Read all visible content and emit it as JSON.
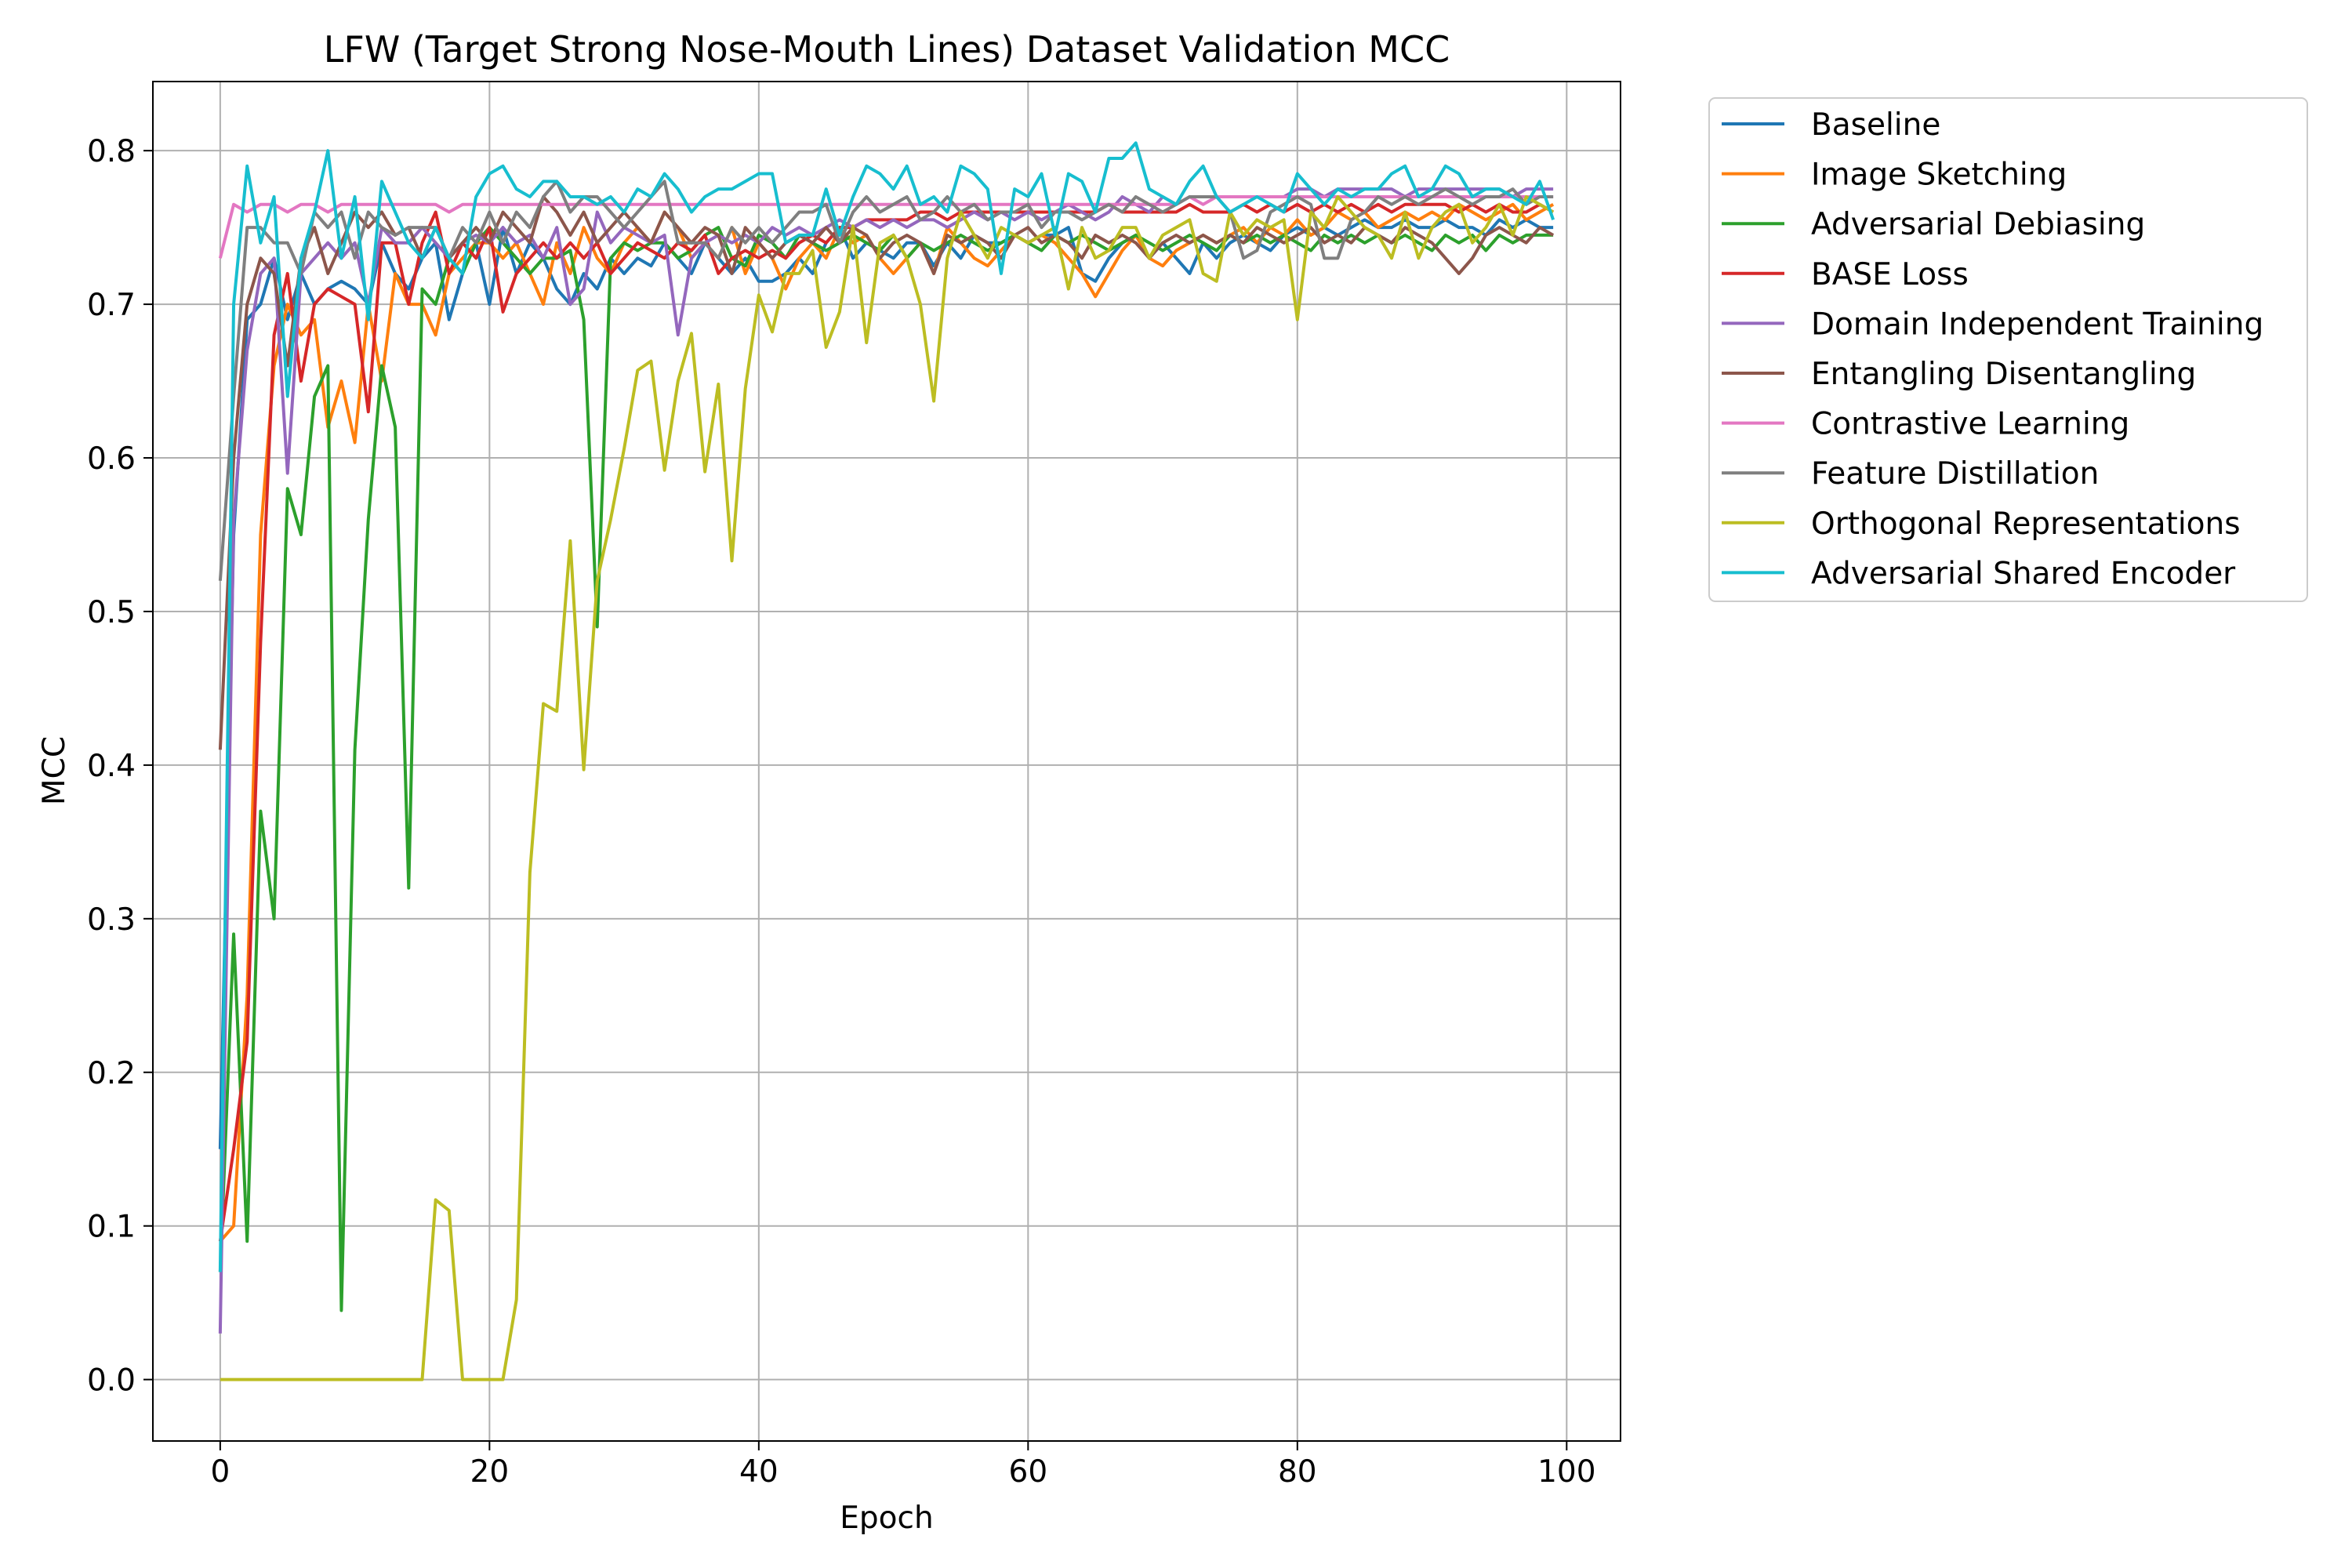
{
  "chart_data": {
    "type": "line",
    "title": "LFW (Target Strong Nose-Mouth Lines) Dataset Validation MCC",
    "xlabel": "Epoch",
    "ylabel": "MCC",
    "xlim": [
      -5,
      104
    ],
    "ylim": [
      -0.04,
      0.845
    ],
    "xticks": [
      0,
      20,
      40,
      60,
      80,
      100
    ],
    "yticks": [
      0.0,
      0.1,
      0.2,
      0.3,
      0.4,
      0.5,
      0.6,
      0.7,
      0.8
    ],
    "xtick_labels": [
      "0",
      "20",
      "40",
      "60",
      "80",
      "100"
    ],
    "ytick_labels": [
      "0.0",
      "0.1",
      "0.2",
      "0.3",
      "0.4",
      "0.5",
      "0.6",
      "0.7",
      "0.8"
    ],
    "grid": true,
    "legend_position": "outside-right-top",
    "x": [
      0,
      1,
      2,
      3,
      4,
      5,
      6,
      7,
      8,
      9,
      10,
      11,
      12,
      13,
      14,
      15,
      16,
      17,
      18,
      19,
      20,
      21,
      22,
      23,
      24,
      25,
      26,
      27,
      28,
      29,
      30,
      31,
      32,
      33,
      34,
      35,
      36,
      37,
      38,
      39,
      40,
      41,
      42,
      43,
      44,
      45,
      46,
      47,
      48,
      49,
      50,
      51,
      52,
      53,
      54,
      55,
      56,
      57,
      58,
      59,
      60,
      61,
      62,
      63,
      64,
      65,
      66,
      67,
      68,
      69,
      70,
      71,
      72,
      73,
      74,
      75,
      76,
      77,
      78,
      79,
      80,
      81,
      82,
      83,
      84,
      85,
      86,
      87,
      88,
      89,
      90,
      91,
      92,
      93,
      94,
      95,
      96,
      97,
      98,
      99
    ],
    "series": [
      {
        "name": "Baseline",
        "color": "#1f77b4",
        "values": [
          0.15,
          0.55,
          0.69,
          0.7,
          0.73,
          0.69,
          0.72,
          0.7,
          0.71,
          0.715,
          0.71,
          0.7,
          0.74,
          0.72,
          0.71,
          0.73,
          0.74,
          0.69,
          0.72,
          0.74,
          0.7,
          0.75,
          0.72,
          0.74,
          0.73,
          0.71,
          0.7,
          0.72,
          0.71,
          0.73,
          0.72,
          0.73,
          0.725,
          0.74,
          0.73,
          0.72,
          0.74,
          0.73,
          0.72,
          0.73,
          0.715,
          0.715,
          0.72,
          0.73,
          0.72,
          0.74,
          0.75,
          0.73,
          0.74,
          0.735,
          0.73,
          0.74,
          0.74,
          0.725,
          0.74,
          0.73,
          0.745,
          0.74,
          0.74,
          0.745,
          0.74,
          0.745,
          0.745,
          0.75,
          0.72,
          0.715,
          0.73,
          0.74,
          0.745,
          0.73,
          0.74,
          0.73,
          0.72,
          0.74,
          0.73,
          0.74,
          0.745,
          0.74,
          0.735,
          0.745,
          0.75,
          0.745,
          0.75,
          0.745,
          0.75,
          0.755,
          0.75,
          0.75,
          0.755,
          0.75,
          0.75,
          0.755,
          0.75,
          0.75,
          0.745,
          0.755,
          0.75,
          0.755,
          0.75,
          0.75
        ]
      },
      {
        "name": "Image Sketching",
        "color": "#ff7f0e",
        "values": [
          0.09,
          0.1,
          0.25,
          0.55,
          0.66,
          0.7,
          0.68,
          0.69,
          0.62,
          0.65,
          0.61,
          0.7,
          0.65,
          0.72,
          0.7,
          0.7,
          0.68,
          0.72,
          0.73,
          0.74,
          0.74,
          0.73,
          0.74,
          0.72,
          0.7,
          0.74,
          0.72,
          0.75,
          0.73,
          0.72,
          0.74,
          0.75,
          0.74,
          0.76,
          0.75,
          0.73,
          0.74,
          0.73,
          0.75,
          0.72,
          0.74,
          0.73,
          0.71,
          0.73,
          0.74,
          0.73,
          0.75,
          0.74,
          0.745,
          0.73,
          0.72,
          0.73,
          0.74,
          0.72,
          0.75,
          0.74,
          0.73,
          0.725,
          0.735,
          0.745,
          0.74,
          0.745,
          0.74,
          0.73,
          0.72,
          0.705,
          0.72,
          0.735,
          0.745,
          0.73,
          0.725,
          0.735,
          0.74,
          0.745,
          0.74,
          0.745,
          0.75,
          0.74,
          0.75,
          0.745,
          0.755,
          0.745,
          0.75,
          0.76,
          0.755,
          0.76,
          0.75,
          0.755,
          0.76,
          0.755,
          0.76,
          0.755,
          0.765,
          0.76,
          0.755,
          0.76,
          0.765,
          0.755,
          0.76,
          0.765
        ]
      },
      {
        "name": "Adversarial Debiasing",
        "color": "#2ca02c",
        "values": [
          0.07,
          0.29,
          0.09,
          0.37,
          0.3,
          0.58,
          0.55,
          0.64,
          0.66,
          0.045,
          0.41,
          0.56,
          0.66,
          0.62,
          0.32,
          0.71,
          0.7,
          0.73,
          0.72,
          0.74,
          0.75,
          0.74,
          0.73,
          0.72,
          0.73,
          0.73,
          0.735,
          0.69,
          0.49,
          0.73,
          0.74,
          0.735,
          0.74,
          0.74,
          0.73,
          0.735,
          0.745,
          0.75,
          0.73,
          0.725,
          0.745,
          0.74,
          0.73,
          0.745,
          0.74,
          0.735,
          0.74,
          0.745,
          0.74,
          0.735,
          0.745,
          0.73,
          0.74,
          0.735,
          0.74,
          0.745,
          0.74,
          0.735,
          0.74,
          0.745,
          0.74,
          0.735,
          0.745,
          0.74,
          0.745,
          0.74,
          0.735,
          0.74,
          0.745,
          0.74,
          0.735,
          0.74,
          0.745,
          0.74,
          0.735,
          0.745,
          0.74,
          0.745,
          0.74,
          0.745,
          0.74,
          0.735,
          0.745,
          0.74,
          0.745,
          0.74,
          0.745,
          0.74,
          0.745,
          0.74,
          0.735,
          0.745,
          0.74,
          0.745,
          0.735,
          0.745,
          0.74,
          0.745,
          0.745,
          0.745
        ]
      },
      {
        "name": "BASE Loss",
        "color": "#d62728",
        "values": [
          0.09,
          0.15,
          0.22,
          0.48,
          0.68,
          0.72,
          0.65,
          0.7,
          0.71,
          0.705,
          0.7,
          0.63,
          0.74,
          0.74,
          0.7,
          0.74,
          0.76,
          0.72,
          0.74,
          0.73,
          0.75,
          0.695,
          0.72,
          0.73,
          0.74,
          0.73,
          0.74,
          0.73,
          0.74,
          0.72,
          0.73,
          0.74,
          0.735,
          0.73,
          0.74,
          0.735,
          0.745,
          0.72,
          0.73,
          0.735,
          0.73,
          0.735,
          0.73,
          0.74,
          0.745,
          0.74,
          0.75,
          0.75,
          0.755,
          0.755,
          0.755,
          0.755,
          0.76,
          0.76,
          0.755,
          0.76,
          0.76,
          0.76,
          0.76,
          0.76,
          0.76,
          0.76,
          0.76,
          0.76,
          0.76,
          0.76,
          0.765,
          0.76,
          0.76,
          0.76,
          0.76,
          0.76,
          0.765,
          0.76,
          0.76,
          0.76,
          0.765,
          0.76,
          0.765,
          0.76,
          0.765,
          0.76,
          0.765,
          0.76,
          0.765,
          0.76,
          0.765,
          0.76,
          0.765,
          0.765,
          0.765,
          0.765,
          0.76,
          0.765,
          0.76,
          0.765,
          0.76,
          0.76,
          0.765,
          0.76
        ]
      },
      {
        "name": "Domain Independent Training",
        "color": "#9467bd",
        "values": [
          0.03,
          0.56,
          0.67,
          0.72,
          0.73,
          0.59,
          0.72,
          0.73,
          0.74,
          0.73,
          0.74,
          0.7,
          0.75,
          0.74,
          0.74,
          0.75,
          0.74,
          0.73,
          0.74,
          0.745,
          0.74,
          0.75,
          0.74,
          0.745,
          0.73,
          0.75,
          0.7,
          0.71,
          0.76,
          0.74,
          0.75,
          0.745,
          0.74,
          0.745,
          0.68,
          0.73,
          0.74,
          0.745,
          0.74,
          0.745,
          0.74,
          0.75,
          0.745,
          0.75,
          0.745,
          0.75,
          0.755,
          0.75,
          0.755,
          0.75,
          0.755,
          0.75,
          0.755,
          0.755,
          0.75,
          0.755,
          0.76,
          0.755,
          0.76,
          0.755,
          0.76,
          0.755,
          0.76,
          0.765,
          0.76,
          0.755,
          0.76,
          0.77,
          0.765,
          0.76,
          0.77,
          0.765,
          0.77,
          0.77,
          0.77,
          0.77,
          0.77,
          0.77,
          0.77,
          0.77,
          0.775,
          0.775,
          0.77,
          0.775,
          0.775,
          0.775,
          0.775,
          0.775,
          0.77,
          0.775,
          0.775,
          0.775,
          0.775,
          0.775,
          0.775,
          0.775,
          0.77,
          0.775,
          0.775,
          0.775
        ]
      },
      {
        "name": "Entangling Disentangling",
        "color": "#8c564b",
        "values": [
          0.41,
          0.6,
          0.7,
          0.73,
          0.72,
          0.66,
          0.73,
          0.75,
          0.72,
          0.74,
          0.76,
          0.75,
          0.76,
          0.745,
          0.75,
          0.73,
          0.75,
          0.73,
          0.74,
          0.75,
          0.74,
          0.76,
          0.75,
          0.74,
          0.77,
          0.76,
          0.745,
          0.76,
          0.74,
          0.75,
          0.76,
          0.75,
          0.74,
          0.76,
          0.75,
          0.74,
          0.75,
          0.745,
          0.72,
          0.75,
          0.74,
          0.73,
          0.74,
          0.745,
          0.74,
          0.75,
          0.74,
          0.75,
          0.745,
          0.73,
          0.74,
          0.745,
          0.74,
          0.72,
          0.745,
          0.74,
          0.745,
          0.74,
          0.73,
          0.745,
          0.75,
          0.74,
          0.745,
          0.74,
          0.73,
          0.745,
          0.74,
          0.745,
          0.74,
          0.73,
          0.74,
          0.745,
          0.74,
          0.745,
          0.74,
          0.745,
          0.74,
          0.75,
          0.745,
          0.74,
          0.745,
          0.75,
          0.74,
          0.745,
          0.74,
          0.75,
          0.745,
          0.74,
          0.75,
          0.745,
          0.74,
          0.73,
          0.72,
          0.73,
          0.745,
          0.75,
          0.745,
          0.74,
          0.75,
          0.745
        ]
      },
      {
        "name": "Contrastive Learning",
        "color": "#e377c2",
        "values": [
          0.73,
          0.765,
          0.76,
          0.765,
          0.765,
          0.76,
          0.765,
          0.765,
          0.76,
          0.765,
          0.765,
          0.765,
          0.765,
          0.765,
          0.765,
          0.765,
          0.765,
          0.76,
          0.765,
          0.765,
          0.765,
          0.765,
          0.765,
          0.765,
          0.765,
          0.765,
          0.765,
          0.765,
          0.765,
          0.765,
          0.765,
          0.765,
          0.765,
          0.765,
          0.765,
          0.765,
          0.765,
          0.765,
          0.765,
          0.765,
          0.765,
          0.765,
          0.765,
          0.765,
          0.765,
          0.765,
          0.765,
          0.765,
          0.765,
          0.765,
          0.765,
          0.765,
          0.765,
          0.765,
          0.765,
          0.765,
          0.765,
          0.765,
          0.765,
          0.765,
          0.765,
          0.765,
          0.765,
          0.765,
          0.765,
          0.765,
          0.765,
          0.765,
          0.765,
          0.765,
          0.765,
          0.765,
          0.77,
          0.765,
          0.77,
          0.77,
          0.77,
          0.77,
          0.77,
          0.77,
          0.77,
          0.77,
          0.77,
          0.77,
          0.77,
          0.77,
          0.77,
          0.77,
          0.77,
          0.77,
          0.77,
          0.77,
          0.77,
          0.77,
          0.77,
          0.77,
          0.77,
          0.77,
          0.77,
          0.77
        ]
      },
      {
        "name": "Feature Distillation",
        "color": "#7f7f7f",
        "values": [
          0.52,
          0.64,
          0.75,
          0.75,
          0.74,
          0.74,
          0.72,
          0.76,
          0.75,
          0.76,
          0.73,
          0.76,
          0.75,
          0.745,
          0.75,
          0.75,
          0.75,
          0.73,
          0.75,
          0.74,
          0.76,
          0.74,
          0.76,
          0.75,
          0.77,
          0.78,
          0.76,
          0.77,
          0.77,
          0.76,
          0.75,
          0.76,
          0.77,
          0.78,
          0.74,
          0.74,
          0.74,
          0.73,
          0.75,
          0.74,
          0.75,
          0.74,
          0.75,
          0.76,
          0.76,
          0.765,
          0.74,
          0.76,
          0.77,
          0.76,
          0.765,
          0.77,
          0.755,
          0.76,
          0.77,
          0.76,
          0.765,
          0.755,
          0.76,
          0.76,
          0.765,
          0.75,
          0.76,
          0.76,
          0.755,
          0.76,
          0.765,
          0.76,
          0.77,
          0.765,
          0.76,
          0.765,
          0.77,
          0.77,
          0.77,
          0.76,
          0.73,
          0.735,
          0.76,
          0.765,
          0.77,
          0.765,
          0.73,
          0.73,
          0.755,
          0.76,
          0.77,
          0.765,
          0.77,
          0.765,
          0.77,
          0.775,
          0.77,
          0.765,
          0.77,
          0.77,
          0.775,
          0.765,
          0.77,
          0.77
        ]
      },
      {
        "name": "Orthogonal Representations",
        "color": "#bcbd22",
        "values": [
          0.0,
          0.0,
          0.0,
          0.0,
          0.0,
          0.0,
          0.0,
          0.0,
          0.0,
          0.0,
          0.0,
          0.0,
          0.0,
          0.0,
          0.0,
          0.0,
          0.117,
          0.11,
          0.0,
          0.0,
          0.0,
          0.0,
          0.052,
          0.33,
          0.44,
          0.435,
          0.546,
          0.397,
          0.52,
          0.56,
          0.606,
          0.657,
          0.663,
          0.592,
          0.65,
          0.681,
          0.591,
          0.648,
          0.533,
          0.645,
          0.706,
          0.682,
          0.72,
          0.72,
          0.735,
          0.672,
          0.695,
          0.751,
          0.675,
          0.74,
          0.745,
          0.73,
          0.7,
          0.637,
          0.73,
          0.76,
          0.745,
          0.73,
          0.75,
          0.745,
          0.74,
          0.745,
          0.75,
          0.71,
          0.75,
          0.73,
          0.735,
          0.75,
          0.75,
          0.73,
          0.745,
          0.75,
          0.755,
          0.72,
          0.715,
          0.76,
          0.745,
          0.755,
          0.75,
          0.755,
          0.69,
          0.76,
          0.75,
          0.77,
          0.76,
          0.75,
          0.745,
          0.73,
          0.76,
          0.73,
          0.75,
          0.76,
          0.765,
          0.74,
          0.75,
          0.765,
          0.745,
          0.77,
          0.765,
          0.76
        ]
      },
      {
        "name": "Adversarial Shared Encoder",
        "color": "#17becf",
        "values": [
          0.07,
          0.7,
          0.79,
          0.74,
          0.77,
          0.64,
          0.73,
          0.76,
          0.8,
          0.73,
          0.77,
          0.69,
          0.78,
          0.76,
          0.74,
          0.73,
          0.75,
          0.73,
          0.72,
          0.77,
          0.785,
          0.79,
          0.775,
          0.77,
          0.78,
          0.78,
          0.77,
          0.77,
          0.765,
          0.77,
          0.76,
          0.775,
          0.77,
          0.785,
          0.775,
          0.76,
          0.77,
          0.775,
          0.775,
          0.78,
          0.785,
          0.785,
          0.74,
          0.745,
          0.745,
          0.775,
          0.745,
          0.77,
          0.79,
          0.785,
          0.775,
          0.79,
          0.765,
          0.77,
          0.76,
          0.79,
          0.785,
          0.775,
          0.72,
          0.775,
          0.77,
          0.785,
          0.745,
          0.785,
          0.78,
          0.76,
          0.795,
          0.795,
          0.805,
          0.775,
          0.77,
          0.765,
          0.78,
          0.79,
          0.77,
          0.76,
          0.765,
          0.77,
          0.765,
          0.76,
          0.785,
          0.775,
          0.765,
          0.775,
          0.77,
          0.775,
          0.775,
          0.785,
          0.79,
          0.77,
          0.775,
          0.79,
          0.785,
          0.77,
          0.775,
          0.775,
          0.77,
          0.765,
          0.78,
          0.755
        ]
      }
    ]
  }
}
